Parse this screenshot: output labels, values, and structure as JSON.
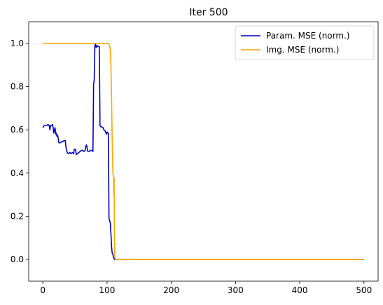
{
  "chart_data": {
    "type": "line",
    "title": "Iter 500",
    "xlabel": "",
    "ylabel": "",
    "xlim": [
      -22,
      522
    ],
    "ylim": [
      -0.1,
      1.1
    ],
    "xticks": [
      0,
      100,
      200,
      300,
      400,
      500
    ],
    "yticks": [
      0.0,
      0.2,
      0.4,
      0.6,
      0.8,
      1.0
    ],
    "grid": false,
    "legend_position": "top-right",
    "series": [
      {
        "name": "Param. MSE (norm.)",
        "color": "#0000cc",
        "points": [
          [
            0,
            0.61
          ],
          [
            2,
            0.62
          ],
          [
            4,
            0.62
          ],
          [
            6,
            0.62
          ],
          [
            8,
            0.625
          ],
          [
            10,
            0.62
          ],
          [
            11,
            0.6
          ],
          [
            12,
            0.62
          ],
          [
            14,
            0.62
          ],
          [
            15,
            0.625
          ],
          [
            16,
            0.61
          ],
          [
            17,
            0.585
          ],
          [
            18,
            0.6
          ],
          [
            19,
            0.61
          ],
          [
            20,
            0.58
          ],
          [
            21,
            0.585
          ],
          [
            22,
            0.57
          ],
          [
            23,
            0.575
          ],
          [
            24,
            0.56
          ],
          [
            25,
            0.54
          ],
          [
            27,
            0.54
          ],
          [
            29,
            0.545
          ],
          [
            31,
            0.545
          ],
          [
            33,
            0.55
          ],
          [
            35,
            0.55
          ],
          [
            36,
            0.52
          ],
          [
            38,
            0.495
          ],
          [
            40,
            0.49
          ],
          [
            42,
            0.495
          ],
          [
            44,
            0.49
          ],
          [
            46,
            0.495
          ],
          [
            48,
            0.49
          ],
          [
            49,
            0.51
          ],
          [
            51,
            0.51
          ],
          [
            52,
            0.485
          ],
          [
            54,
            0.49
          ],
          [
            56,
            0.495
          ],
          [
            58,
            0.5
          ],
          [
            60,
            0.505
          ],
          [
            62,
            0.505
          ],
          [
            64,
            0.5
          ],
          [
            66,
            0.505
          ],
          [
            67,
            0.525
          ],
          [
            68,
            0.53
          ],
          [
            69,
            0.515
          ],
          [
            70,
            0.5
          ],
          [
            72,
            0.5
          ],
          [
            74,
            0.505
          ],
          [
            76,
            0.505
          ],
          [
            78,
            0.5
          ],
          [
            79,
            0.81
          ],
          [
            80,
            0.83
          ],
          [
            81,
            0.99
          ],
          [
            82,
            0.995
          ],
          [
            83,
            0.98
          ],
          [
            84,
            0.99
          ],
          [
            86,
            0.985
          ],
          [
            88,
            0.985
          ],
          [
            89,
            0.62
          ],
          [
            90,
            0.615
          ],
          [
            91,
            0.615
          ],
          [
            93,
            0.61
          ],
          [
            94,
            0.61
          ],
          [
            95,
            0.6
          ],
          [
            97,
            0.595
          ],
          [
            99,
            0.58
          ],
          [
            100,
            0.59
          ],
          [
            101,
            0.585
          ],
          [
            102,
            0.585
          ],
          [
            103,
            0.19
          ],
          [
            104,
            0.18
          ],
          [
            105,
            0.17
          ],
          [
            106,
            0.12
          ],
          [
            107,
            0.06
          ],
          [
            108,
            0.03
          ],
          [
            109,
            0.025
          ],
          [
            110,
            0.01
          ],
          [
            112,
            0.0
          ],
          [
            200,
            0.0
          ],
          [
            300,
            0.0
          ],
          [
            400,
            0.0
          ],
          [
            500,
            0.0
          ]
        ]
      },
      {
        "name": "Img. MSE (norm.)",
        "color": "#ffa500",
        "points": [
          [
            0,
            1.0
          ],
          [
            50,
            1.0
          ],
          [
            100,
            1.0
          ],
          [
            102,
            0.998
          ],
          [
            103,
            0.995
          ],
          [
            104,
            0.99
          ],
          [
            105,
            0.97
          ],
          [
            106,
            0.9
          ],
          [
            107,
            0.75
          ],
          [
            108,
            0.55
          ],
          [
            109,
            0.4
          ],
          [
            110,
            0.39
          ],
          [
            110.5,
            0.3
          ],
          [
            111,
            0.38
          ],
          [
            111.5,
            0.1
          ],
          [
            112,
            0.02
          ],
          [
            113,
            0.0
          ],
          [
            200,
            0.0
          ],
          [
            300,
            0.0
          ],
          [
            400,
            0.0
          ],
          [
            500,
            0.0
          ]
        ]
      }
    ]
  }
}
